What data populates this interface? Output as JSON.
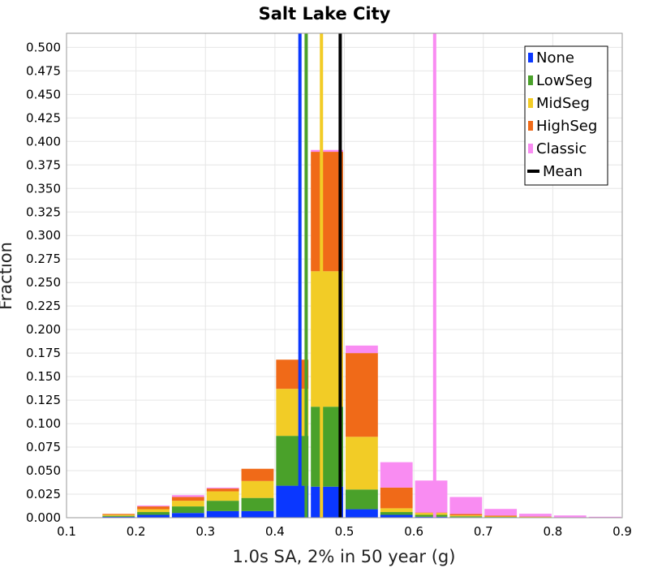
{
  "chart_data": {
    "type": "bar",
    "stacked": true,
    "title": "Salt Lake City",
    "xlabel": "1.0s SA, 2% in 50 year (g)",
    "ylabel": "Fraction",
    "xlim": [
      0.1,
      0.9
    ],
    "ylim": [
      0,
      0.515
    ],
    "xticks": [
      "0.1",
      "0.2",
      "0.3",
      "0.4",
      "0.5",
      "0.6",
      "0.7",
      "0.8",
      "0.9"
    ],
    "yticks": [
      "0.000",
      "0.025",
      "0.050",
      "0.075",
      "0.100",
      "0.125",
      "0.150",
      "0.175",
      "0.200",
      "0.225",
      "0.250",
      "0.275",
      "0.300",
      "0.325",
      "0.350",
      "0.375",
      "0.400",
      "0.425",
      "0.450",
      "0.475",
      "0.500"
    ],
    "grid": true,
    "legend_position": "top-right",
    "bins": [
      {
        "x0": 0.15,
        "x1": 0.2
      },
      {
        "x0": 0.2,
        "x1": 0.25
      },
      {
        "x0": 0.25,
        "x1": 0.3
      },
      {
        "x0": 0.3,
        "x1": 0.35
      },
      {
        "x0": 0.35,
        "x1": 0.4
      },
      {
        "x0": 0.4,
        "x1": 0.45
      },
      {
        "x0": 0.45,
        "x1": 0.5
      },
      {
        "x0": 0.5,
        "x1": 0.55
      },
      {
        "x0": 0.55,
        "x1": 0.6
      },
      {
        "x0": 0.6,
        "x1": 0.65
      },
      {
        "x0": 0.65,
        "x1": 0.7
      },
      {
        "x0": 0.7,
        "x1": 0.75
      },
      {
        "x0": 0.75,
        "x1": 0.8
      },
      {
        "x0": 0.8,
        "x1": 0.85
      },
      {
        "x0": 0.85,
        "x1": 0.9
      }
    ],
    "series": [
      {
        "name": "None",
        "color": "#0a37ff",
        "values": [
          0.001,
          0.003,
          0.005,
          0.007,
          0.007,
          0.034,
          0.033,
          0.009,
          0.003,
          0.001,
          0.0005,
          0.0003,
          0.0002,
          0.0001,
          0
        ]
      },
      {
        "name": "LowSeg",
        "color": "#4aa12a",
        "values": [
          0.001,
          0.003,
          0.007,
          0.011,
          0.014,
          0.053,
          0.085,
          0.021,
          0.003,
          0.002,
          0.001,
          0.0005,
          0.0003,
          0.0001,
          0
        ]
      },
      {
        "name": "MidSeg",
        "color": "#f2cc26",
        "values": [
          0.001,
          0.003,
          0.006,
          0.01,
          0.018,
          0.05,
          0.144,
          0.056,
          0.004,
          0.002,
          0.001,
          0.0005,
          0.0003,
          0.0001,
          0
        ]
      },
      {
        "name": "HighSeg",
        "color": "#f06a18",
        "values": [
          0.001,
          0.003,
          0.004,
          0.003,
          0.013,
          0.031,
          0.127,
          0.089,
          0.022,
          0.0005,
          0.0015,
          0.001,
          0.0004,
          0.0001,
          0
        ]
      },
      {
        "name": "Classic",
        "color": "#f98cf2",
        "values": [
          0,
          0.001,
          0.002,
          0.001,
          0,
          0,
          0.002,
          0.008,
          0.027,
          0.034,
          0.018,
          0.007,
          0.003,
          0.002,
          0.001
        ]
      }
    ],
    "mean_lines": [
      {
        "name": "None",
        "x": 0.436,
        "color": "#0a37ff"
      },
      {
        "name": "LowSeg",
        "x": 0.445,
        "color": "#4aa12a"
      },
      {
        "name": "MidSeg",
        "x": 0.467,
        "color": "#f2cc26"
      },
      {
        "name": "Mean",
        "x": 0.494,
        "color": "#000000"
      },
      {
        "name": "Classic",
        "x": 0.63,
        "color": "#f98cf2"
      }
    ],
    "legend": [
      {
        "label": "None",
        "color": "#0a37ff"
      },
      {
        "label": "LowSeg",
        "color": "#4aa12a"
      },
      {
        "label": "MidSeg",
        "color": "#f2cc26"
      },
      {
        "label": "HighSeg",
        "color": "#f06a18"
      },
      {
        "label": "Classic",
        "color": "#f98cf2"
      },
      {
        "label": "Mean",
        "color": "#000000"
      }
    ]
  }
}
